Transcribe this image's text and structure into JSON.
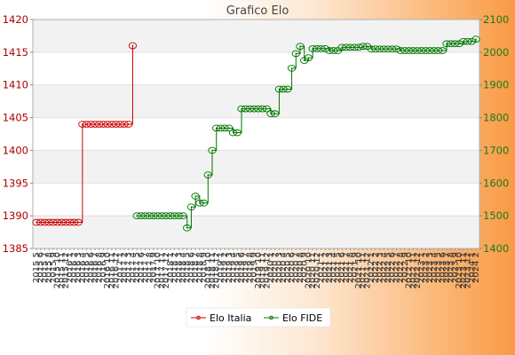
{
  "chart_data": {
    "type": "line",
    "title": "Grafico Elo",
    "xlabel": "",
    "ylabel_left": "",
    "ylabel_right": "",
    "y_left": {
      "lim": [
        1385,
        1420
      ],
      "ticks": [
        1385,
        1390,
        1395,
        1400,
        1405,
        1410,
        1415,
        1420
      ]
    },
    "y_right": {
      "lim": [
        1400,
        2100
      ],
      "ticks": [
        1400,
        1500,
        1600,
        1700,
        1800,
        1900,
        2000,
        2100
      ]
    },
    "grid": true,
    "legend_position": "bottom",
    "series": [
      {
        "name": "Elo Italia",
        "axis": "left",
        "color": "#cc0000",
        "start_index": 0,
        "values": [
          1389,
          1389,
          1389,
          1389,
          1389,
          1389,
          1389,
          1389,
          1389,
          1389,
          1389,
          1404,
          1404,
          1404,
          1404,
          1404,
          1404,
          1404,
          1404,
          1404,
          1404,
          1404,
          1404,
          1416
        ]
      },
      {
        "name": "Elo FIDE",
        "axis": "right",
        "color": "#007700",
        "start_index": 24,
        "values": [
          1500,
          1500,
          1500,
          1500,
          1500,
          1500,
          1500,
          1500,
          1500,
          1500,
          1500,
          1500,
          1463,
          1527,
          1560,
          1539,
          1539,
          1625,
          1700,
          1768,
          1768,
          1768,
          1768,
          1754,
          1754,
          1827,
          1827,
          1827,
          1827,
          1827,
          1827,
          1827,
          1812,
          1812,
          1887,
          1887,
          1887,
          1951,
          1996,
          2018,
          1975,
          1983,
          2011,
          2011,
          2011,
          2011,
          2005,
          2005,
          2005,
          2015,
          2015,
          2015,
          2015,
          2015,
          2018,
          2018,
          2010,
          2010,
          2010,
          2010,
          2010,
          2010,
          2010,
          2005,
          2005,
          2005,
          2005,
          2005,
          2005,
          2005,
          2005,
          2005,
          2005,
          2005,
          2026,
          2026,
          2026,
          2026,
          2033,
          2033,
          2033,
          2040
        ]
      }
    ],
    "x_tick_labels": [
      "2015 5",
      "2015 6",
      "2015 7",
      "2015 8",
      "2015 9",
      "2015 10",
      "2015 11",
      "2015 12",
      "2016 1",
      "2016 2",
      "2016 3",
      "2016 4",
      "2016 5",
      "2016 6",
      "2016 7",
      "2016 8",
      "2016 9",
      "2016 10",
      "2016 11",
      "2016 12",
      "2017 1",
      "2017 2",
      "2017 3",
      "2017 4",
      "2017 5",
      "2017 6",
      "2017 7",
      "2017 8",
      "2017 9",
      "2017 10",
      "2017 11",
      "2017 12",
      "2018 1",
      "2018 2",
      "2018 3",
      "2018 4",
      "2018 5",
      "2018 6",
      "2018 7",
      "2018 8",
      "2018 9",
      "2018 10",
      "2018 11",
      "2018 12",
      "2019 1",
      "2019 2",
      "2019 3",
      "2019 4",
      "2019 5",
      "2019 6",
      "2019 7",
      "2019 8",
      "2019 9",
      "2019 10",
      "2019 11",
      "2019 12",
      "2020 1",
      "2020 2",
      "2020 3",
      "2020 4",
      "2020 5",
      "2020 6",
      "2020 7",
      "2020 8",
      "2020 9",
      "2020 10",
      "2020 11",
      "2020 12",
      "2021 1",
      "2021 2",
      "2021 3",
      "2021 4",
      "2021 5",
      "2021 6",
      "2021 7",
      "2021 8",
      "2021 9",
      "2021 10",
      "2021 11",
      "2021 12",
      "2022 1",
      "2022 2",
      "2022 3",
      "2022 4",
      "2022 5",
      "2022 6",
      "2022 7",
      "2022 8",
      "2022 9",
      "2022 10",
      "2022 11",
      "2022 12",
      "2023 1",
      "2023 2",
      "2023 3",
      "2023 4",
      "2023 5",
      "2023 6",
      "2023 7",
      "2023 8",
      "2023 9",
      "2023 10",
      "2023 11",
      "2023 12",
      "2024 1",
      "2024 2"
    ]
  }
}
